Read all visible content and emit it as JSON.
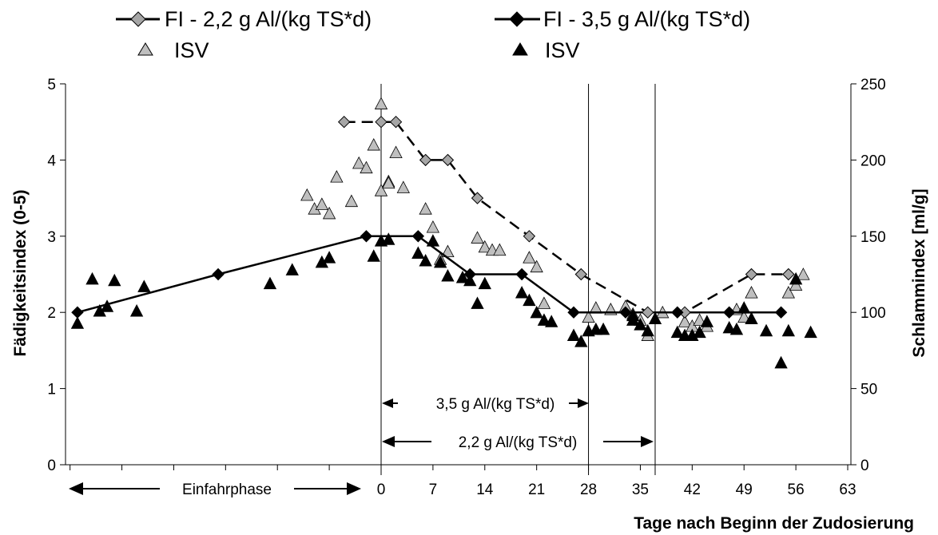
{
  "chart_data": {
    "type": "line",
    "title": "",
    "xlabel": "Tage nach Beginn der Zudosierung",
    "ylabel_left": "Fädigkeitsindex (0-5)",
    "ylabel_right": "Schlammindex [ml/g]",
    "x_range": [
      -43,
      63
    ],
    "y_left_range": [
      0,
      5
    ],
    "y_right_range": [
      0,
      250
    ],
    "x_ticks": [
      0,
      7,
      14,
      21,
      28,
      35,
      42,
      49,
      56,
      63
    ],
    "y_left_ticks": [
      0,
      1,
      2,
      3,
      4,
      5
    ],
    "y_right_ticks": [
      0,
      50,
      100,
      150,
      200,
      250
    ],
    "grid": false,
    "legend_position": "top",
    "series": [
      {
        "name": "FI - 2,2 g Al/(kg TS*d)",
        "axis": "left",
        "color": "#a6a6a6",
        "marker": "diamond",
        "line_style": "dashed",
        "points": [
          [
            -5,
            4.5
          ],
          [
            0,
            4.5
          ],
          [
            2,
            4.5
          ],
          [
            6,
            4.0
          ],
          [
            9,
            4.0
          ],
          [
            13,
            3.5
          ],
          [
            20,
            3.0
          ],
          [
            27,
            2.5
          ],
          [
            36,
            2.0
          ],
          [
            41,
            2.0
          ],
          [
            50,
            2.5
          ],
          [
            55,
            2.5
          ]
        ]
      },
      {
        "name": "ISV",
        "axis": "right",
        "color": "#bfbfbf",
        "marker": "triangle",
        "points": [
          [
            -10,
            177
          ],
          [
            -9,
            168
          ],
          [
            -8,
            171
          ],
          [
            -7,
            165
          ],
          [
            -6,
            189
          ],
          [
            -4,
            173
          ],
          [
            -3,
            198
          ],
          [
            -2,
            195
          ],
          [
            -1,
            210
          ],
          [
            1,
            186
          ],
          [
            0,
            180
          ],
          [
            0,
            237
          ],
          [
            1,
            185
          ],
          [
            2,
            205
          ],
          [
            3,
            182
          ],
          [
            6,
            168
          ],
          [
            7,
            156
          ],
          [
            8,
            135
          ],
          [
            9,
            140
          ],
          [
            13,
            149
          ],
          [
            14,
            143
          ],
          [
            15,
            141
          ],
          [
            16,
            141
          ],
          [
            20,
            136
          ],
          [
            21,
            130
          ],
          [
            22,
            106
          ],
          [
            28,
            97
          ],
          [
            29,
            103
          ],
          [
            31,
            102
          ],
          [
            33,
            104
          ],
          [
            34,
            99
          ],
          [
            35,
            95
          ],
          [
            36,
            85
          ],
          [
            38,
            100
          ],
          [
            41,
            94
          ],
          [
            42,
            91
          ],
          [
            43,
            95
          ],
          [
            44,
            91
          ],
          [
            48,
            102
          ],
          [
            49,
            97
          ],
          [
            50,
            113
          ],
          [
            55,
            113
          ],
          [
            56,
            118
          ],
          [
            57,
            125
          ]
        ]
      },
      {
        "name": "FI - 3,5 g Al/(kg TS*d)",
        "axis": "left",
        "color": "#000000",
        "marker": "diamond",
        "line_style": "solid",
        "points": [
          [
            -41,
            2.0
          ],
          [
            -22,
            2.5
          ],
          [
            -2,
            3.0
          ],
          [
            5,
            3.0
          ],
          [
            12,
            2.5
          ],
          [
            19,
            2.5
          ],
          [
            26,
            2.0
          ],
          [
            33,
            2.0
          ],
          [
            40,
            2.0
          ],
          [
            47,
            2.0
          ],
          [
            54,
            2.0
          ]
        ]
      },
      {
        "name": "ISV",
        "axis": "right",
        "color": "#000000",
        "marker": "triangle",
        "points": [
          [
            -41,
            93
          ],
          [
            -39,
            122
          ],
          [
            -38,
            101
          ],
          [
            -37,
            104
          ],
          [
            -36,
            121
          ],
          [
            -33,
            101
          ],
          [
            -32,
            117
          ],
          [
            -15,
            119
          ],
          [
            -12,
            128
          ],
          [
            -8,
            133
          ],
          [
            -7,
            136
          ],
          [
            -1,
            137
          ],
          [
            0,
            147
          ],
          [
            1,
            148
          ],
          [
            5,
            139
          ],
          [
            6,
            134
          ],
          [
            7,
            147
          ],
          [
            8,
            133
          ],
          [
            9,
            124
          ],
          [
            11,
            123
          ],
          [
            12,
            121
          ],
          [
            13,
            106
          ],
          [
            14,
            119
          ],
          [
            19,
            113
          ],
          [
            20,
            108
          ],
          [
            21,
            100
          ],
          [
            22,
            95
          ],
          [
            23,
            94
          ],
          [
            26,
            85
          ],
          [
            27,
            81
          ],
          [
            28,
            88
          ],
          [
            29,
            89
          ],
          [
            30,
            89
          ],
          [
            34,
            95
          ],
          [
            34,
            98
          ],
          [
            35,
            92
          ],
          [
            36,
            88
          ],
          [
            37,
            96
          ],
          [
            40,
            87
          ],
          [
            41,
            85
          ],
          [
            42,
            85
          ],
          [
            43,
            87
          ],
          [
            44,
            94
          ],
          [
            47,
            90
          ],
          [
            48,
            89
          ],
          [
            49,
            103
          ],
          [
            50,
            96
          ],
          [
            52,
            88
          ],
          [
            54,
            67
          ],
          [
            55,
            88
          ],
          [
            56,
            122
          ],
          [
            58,
            87
          ]
        ]
      }
    ],
    "annotations": {
      "phase_label": "Einfahrphase",
      "zero_marker_label": "0",
      "dose_35_label": "3,5 g Al/(kg TS*d)",
      "dose_22_label": "2,2 g Al/(kg TS*d)"
    },
    "vertical_lines_x": [
      0,
      28,
      37
    ]
  }
}
